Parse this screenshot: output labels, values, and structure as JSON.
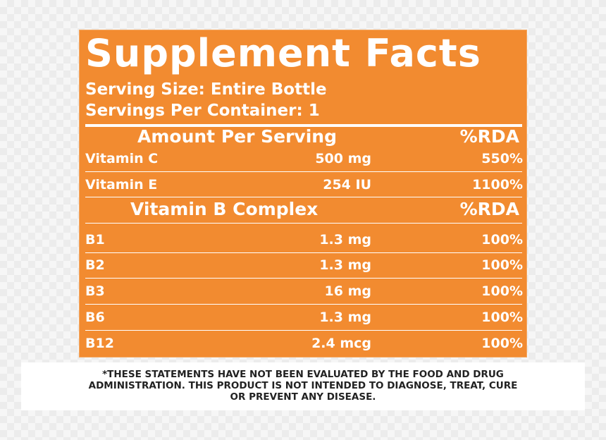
{
  "label": {
    "title": "Supplement Facts",
    "serving_size": "Serving Size: Entire Bottle",
    "servings_per_container": "Servings Per Container: 1",
    "header1": {
      "left": "Amount Per Serving",
      "right": "%RDA"
    },
    "vitamins": [
      {
        "name": "Vitamin C",
        "amount": "500 mg",
        "rda": "550%"
      },
      {
        "name": "Vitamin E",
        "amount": "254 IU",
        "rda": "1100%"
      }
    ],
    "header2": {
      "left": "Vitamin B Complex",
      "right": "%RDA"
    },
    "b_complex": [
      {
        "name": "B1",
        "amount": "1.3 mg",
        "rda": "100%"
      },
      {
        "name": "B2",
        "amount": "1.3 mg",
        "rda": "100%"
      },
      {
        "name": "B3",
        "amount": "16 mg",
        "rda": "100%"
      },
      {
        "name": "B6",
        "amount": "1.3 mg",
        "rda": "100%"
      },
      {
        "name": "B12",
        "amount": "2.4 mcg",
        "rda": "100%"
      }
    ]
  },
  "disclaimer": {
    "lines": [
      "*THESE STATEMENTS HAVE NOT BEEN EVALUATED BY THE FOOD AND DRUG",
      "ADMINISTRATION. THIS PRODUCT IS NOT INTENDED TO DIAGNOSE, TREAT, CURE",
      "OR PREVENT ANY DISEASE."
    ]
  },
  "colors": {
    "panel": "#f28b30",
    "text": "#ffffff",
    "disclaimer_text": "#222222"
  }
}
